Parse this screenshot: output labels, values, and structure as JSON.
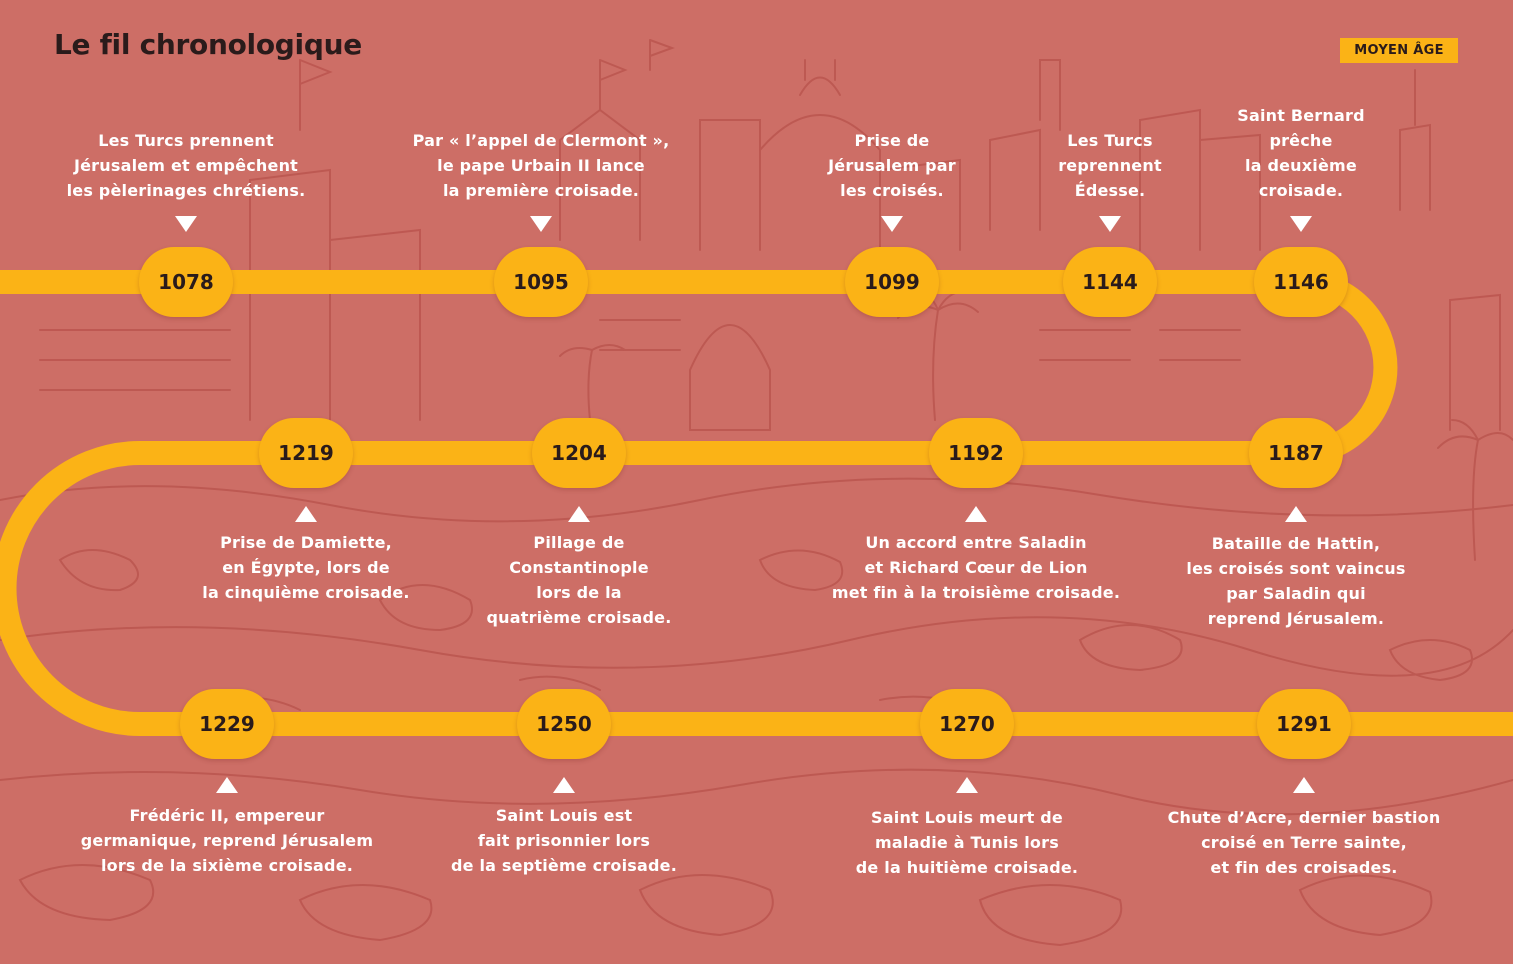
{
  "header": {
    "title": "Le fil chronologique",
    "tag": "MOYEN ÂGE"
  },
  "colors": {
    "background": "#cd6e66",
    "accent": "#fbb316",
    "text_dark": "#2a1b1b",
    "caption": "#ffffff"
  },
  "events": [
    {
      "year": "1078",
      "text": "Les Turcs prennent\nJérusalem et empêchent\nles pèlerinages chrétiens."
    },
    {
      "year": "1095",
      "text": "Par « l’appel de Clermont »,\nle pape Urbain II lance\nla première croisade."
    },
    {
      "year": "1099",
      "text": "Prise de\nJérusalem par\nles croisés."
    },
    {
      "year": "1144",
      "text": "Les Turcs\nreprennent\nÉdesse."
    },
    {
      "year": "1146",
      "text": "Saint Bernard\nprêche\nla deuxième\ncroisade."
    },
    {
      "year": "1187",
      "text": "Bataille de Hattin,\nles croisés sont vaincus\npar Saladin qui\nreprend Jérusalem."
    },
    {
      "year": "1192",
      "text": "Un accord entre Saladin\net Richard Cœur de Lion\nmet fin à la troisième croisade."
    },
    {
      "year": "1204",
      "text": "Pillage de\nConstantinople\nlors de la\nquatrième croisade."
    },
    {
      "year": "1219",
      "text": "Prise de Damiette,\nen Égypte, lors de\nla cinquième croisade."
    },
    {
      "year": "1229",
      "text": "Frédéric II, empereur\ngermanique, reprend Jérusalem\nlors de la sixième croisade."
    },
    {
      "year": "1250",
      "text": "Saint Louis est\nfait prisonnier lors\nde la septième croisade."
    },
    {
      "year": "1270",
      "text": "Saint Louis meurt de\nmaladie à Tunis lors\nde la huitième croisade."
    },
    {
      "year": "1291",
      "text": "Chute d’Acre, dernier bastion\ncroisé en Terre sainte,\net fin des croisades."
    }
  ]
}
